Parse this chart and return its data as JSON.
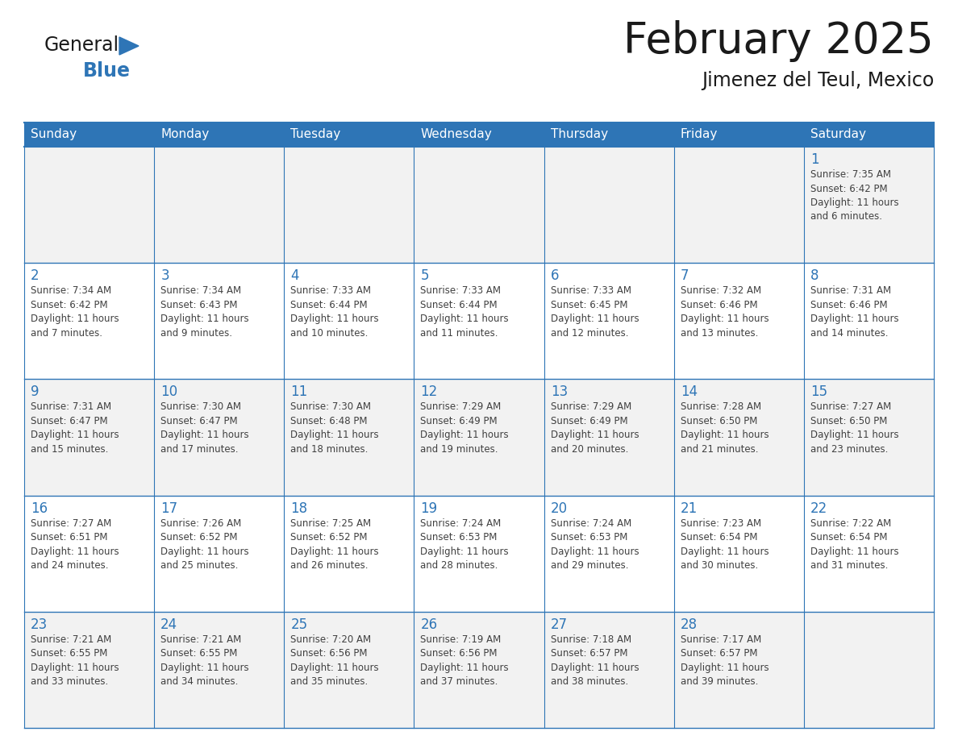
{
  "title": "February 2025",
  "subtitle": "Jimenez del Teul, Mexico",
  "header_color": "#2E75B6",
  "header_text_color": "#FFFFFF",
  "cell_bg_white": "#FFFFFF",
  "cell_bg_gray": "#F2F2F2",
  "border_color": "#2E75B6",
  "day_number_color": "#2E75B6",
  "cell_text_color": "#404040",
  "days_of_week": [
    "Sunday",
    "Monday",
    "Tuesday",
    "Wednesday",
    "Thursday",
    "Friday",
    "Saturday"
  ],
  "weeks": [
    [
      {
        "day": null,
        "info": null
      },
      {
        "day": null,
        "info": null
      },
      {
        "day": null,
        "info": null
      },
      {
        "day": null,
        "info": null
      },
      {
        "day": null,
        "info": null
      },
      {
        "day": null,
        "info": null
      },
      {
        "day": 1,
        "info": "Sunrise: 7:35 AM\nSunset: 6:42 PM\nDaylight: 11 hours\nand 6 minutes."
      }
    ],
    [
      {
        "day": 2,
        "info": "Sunrise: 7:34 AM\nSunset: 6:42 PM\nDaylight: 11 hours\nand 7 minutes."
      },
      {
        "day": 3,
        "info": "Sunrise: 7:34 AM\nSunset: 6:43 PM\nDaylight: 11 hours\nand 9 minutes."
      },
      {
        "day": 4,
        "info": "Sunrise: 7:33 AM\nSunset: 6:44 PM\nDaylight: 11 hours\nand 10 minutes."
      },
      {
        "day": 5,
        "info": "Sunrise: 7:33 AM\nSunset: 6:44 PM\nDaylight: 11 hours\nand 11 minutes."
      },
      {
        "day": 6,
        "info": "Sunrise: 7:33 AM\nSunset: 6:45 PM\nDaylight: 11 hours\nand 12 minutes."
      },
      {
        "day": 7,
        "info": "Sunrise: 7:32 AM\nSunset: 6:46 PM\nDaylight: 11 hours\nand 13 minutes."
      },
      {
        "day": 8,
        "info": "Sunrise: 7:31 AM\nSunset: 6:46 PM\nDaylight: 11 hours\nand 14 minutes."
      }
    ],
    [
      {
        "day": 9,
        "info": "Sunrise: 7:31 AM\nSunset: 6:47 PM\nDaylight: 11 hours\nand 15 minutes."
      },
      {
        "day": 10,
        "info": "Sunrise: 7:30 AM\nSunset: 6:47 PM\nDaylight: 11 hours\nand 17 minutes."
      },
      {
        "day": 11,
        "info": "Sunrise: 7:30 AM\nSunset: 6:48 PM\nDaylight: 11 hours\nand 18 minutes."
      },
      {
        "day": 12,
        "info": "Sunrise: 7:29 AM\nSunset: 6:49 PM\nDaylight: 11 hours\nand 19 minutes."
      },
      {
        "day": 13,
        "info": "Sunrise: 7:29 AM\nSunset: 6:49 PM\nDaylight: 11 hours\nand 20 minutes."
      },
      {
        "day": 14,
        "info": "Sunrise: 7:28 AM\nSunset: 6:50 PM\nDaylight: 11 hours\nand 21 minutes."
      },
      {
        "day": 15,
        "info": "Sunrise: 7:27 AM\nSunset: 6:50 PM\nDaylight: 11 hours\nand 23 minutes."
      }
    ],
    [
      {
        "day": 16,
        "info": "Sunrise: 7:27 AM\nSunset: 6:51 PM\nDaylight: 11 hours\nand 24 minutes."
      },
      {
        "day": 17,
        "info": "Sunrise: 7:26 AM\nSunset: 6:52 PM\nDaylight: 11 hours\nand 25 minutes."
      },
      {
        "day": 18,
        "info": "Sunrise: 7:25 AM\nSunset: 6:52 PM\nDaylight: 11 hours\nand 26 minutes."
      },
      {
        "day": 19,
        "info": "Sunrise: 7:24 AM\nSunset: 6:53 PM\nDaylight: 11 hours\nand 28 minutes."
      },
      {
        "day": 20,
        "info": "Sunrise: 7:24 AM\nSunset: 6:53 PM\nDaylight: 11 hours\nand 29 minutes."
      },
      {
        "day": 21,
        "info": "Sunrise: 7:23 AM\nSunset: 6:54 PM\nDaylight: 11 hours\nand 30 minutes."
      },
      {
        "day": 22,
        "info": "Sunrise: 7:22 AM\nSunset: 6:54 PM\nDaylight: 11 hours\nand 31 minutes."
      }
    ],
    [
      {
        "day": 23,
        "info": "Sunrise: 7:21 AM\nSunset: 6:55 PM\nDaylight: 11 hours\nand 33 minutes."
      },
      {
        "day": 24,
        "info": "Sunrise: 7:21 AM\nSunset: 6:55 PM\nDaylight: 11 hours\nand 34 minutes."
      },
      {
        "day": 25,
        "info": "Sunrise: 7:20 AM\nSunset: 6:56 PM\nDaylight: 11 hours\nand 35 minutes."
      },
      {
        "day": 26,
        "info": "Sunrise: 7:19 AM\nSunset: 6:56 PM\nDaylight: 11 hours\nand 37 minutes."
      },
      {
        "day": 27,
        "info": "Sunrise: 7:18 AM\nSunset: 6:57 PM\nDaylight: 11 hours\nand 38 minutes."
      },
      {
        "day": 28,
        "info": "Sunrise: 7:17 AM\nSunset: 6:57 PM\nDaylight: 11 hours\nand 39 minutes."
      },
      {
        "day": null,
        "info": null
      }
    ]
  ],
  "logo_text_general": "General",
  "logo_text_blue": "Blue",
  "logo_color_general": "#1a1a1a",
  "logo_color_blue": "#2E75B6",
  "logo_triangle_color": "#2E75B6",
  "title_fontsize": 38,
  "subtitle_fontsize": 17,
  "dow_fontsize": 11,
  "day_num_fontsize": 12,
  "cell_text_fontsize": 8.5
}
